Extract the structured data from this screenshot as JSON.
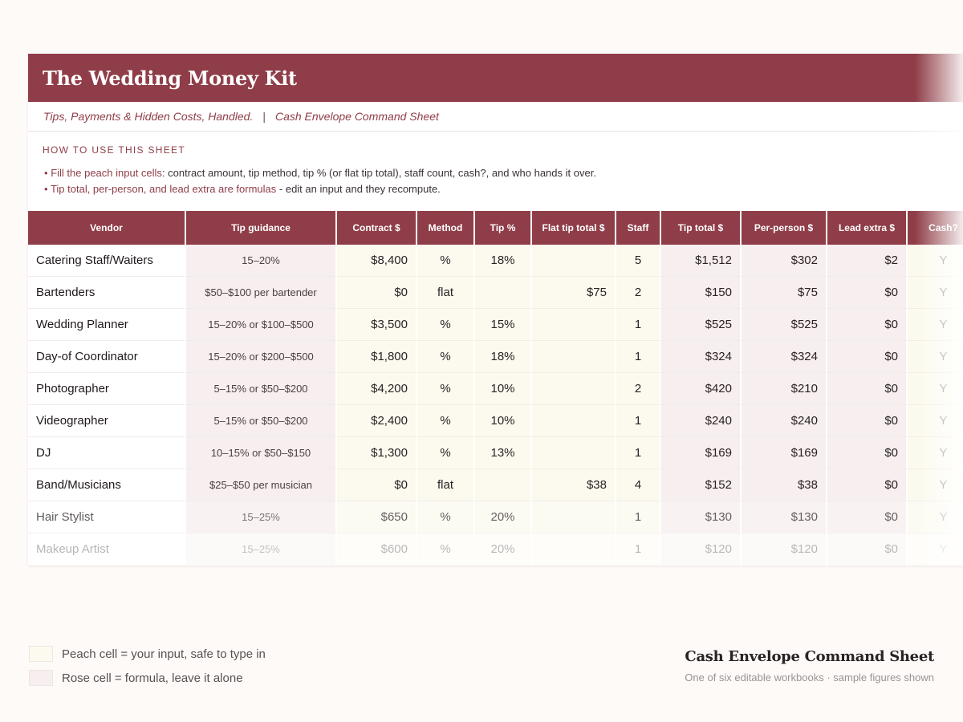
{
  "header": {
    "title": "The Wedding Money Kit",
    "subtitle_left": "Tips, Payments & Hidden Costs, Handled.",
    "separator": "|",
    "subtitle_right": "Cash Envelope Command Sheet"
  },
  "howto": {
    "heading": "HOW TO USE THIS SHEET",
    "items": [
      {
        "bullet": "•",
        "highlight": "Fill the peach input cells",
        "rest": ": contract amount, tip method, tip % (or flat tip total), staff count, cash?, and who hands it over."
      },
      {
        "bullet": "•",
        "highlight": "Tip total, per-person, and lead extra are formulas",
        "rest": " - edit an input and they recompute."
      }
    ]
  },
  "table": {
    "columns": [
      "Vendor",
      "Tip guidance",
      "Contract $",
      "Method",
      "Tip %",
      "Flat tip total $",
      "Staff",
      "Tip total $",
      "Per-person $",
      "Lead extra $",
      "Cash?"
    ],
    "rows": [
      {
        "vendor": "Catering Staff/Waiters",
        "guidance": "15–20%",
        "contract": "$8,400",
        "method": "%",
        "tip_pct": "18%",
        "flat": "",
        "staff": "5",
        "tip_total": "$1,512",
        "per_person": "$302",
        "lead_extra": "$2",
        "cash": "Y"
      },
      {
        "vendor": "Bartenders",
        "guidance": "$50–$100 per bartender",
        "contract": "$0",
        "method": "flat",
        "tip_pct": "",
        "flat": "$75",
        "staff": "2",
        "tip_total": "$150",
        "per_person": "$75",
        "lead_extra": "$0",
        "cash": "Y"
      },
      {
        "vendor": "Wedding Planner",
        "guidance": "15–20% or $100–$500",
        "contract": "$3,500",
        "method": "%",
        "tip_pct": "15%",
        "flat": "",
        "staff": "1",
        "tip_total": "$525",
        "per_person": "$525",
        "lead_extra": "$0",
        "cash": "Y"
      },
      {
        "vendor": "Day-of Coordinator",
        "guidance": "15–20% or $200–$500",
        "contract": "$1,800",
        "method": "%",
        "tip_pct": "18%",
        "flat": "",
        "staff": "1",
        "tip_total": "$324",
        "per_person": "$324",
        "lead_extra": "$0",
        "cash": "Y"
      },
      {
        "vendor": "Photographer",
        "guidance": "5–15% or $50–$200",
        "contract": "$4,200",
        "method": "%",
        "tip_pct": "10%",
        "flat": "",
        "staff": "2",
        "tip_total": "$420",
        "per_person": "$210",
        "lead_extra": "$0",
        "cash": "Y"
      },
      {
        "vendor": "Videographer",
        "guidance": "5–15% or $50–$200",
        "contract": "$2,400",
        "method": "%",
        "tip_pct": "10%",
        "flat": "",
        "staff": "1",
        "tip_total": "$240",
        "per_person": "$240",
        "lead_extra": "$0",
        "cash": "Y"
      },
      {
        "vendor": "DJ",
        "guidance": "10–15% or $50–$150",
        "contract": "$1,300",
        "method": "%",
        "tip_pct": "13%",
        "flat": "",
        "staff": "1",
        "tip_total": "$169",
        "per_person": "$169",
        "lead_extra": "$0",
        "cash": "Y"
      },
      {
        "vendor": "Band/Musicians",
        "guidance": "$25–$50 per musician",
        "contract": "$0",
        "method": "flat",
        "tip_pct": "",
        "flat": "$38",
        "staff": "4",
        "tip_total": "$152",
        "per_person": "$38",
        "lead_extra": "$0",
        "cash": "Y"
      },
      {
        "vendor": "Hair Stylist",
        "guidance": "15–25%",
        "contract": "$650",
        "method": "%",
        "tip_pct": "20%",
        "flat": "",
        "staff": "1",
        "tip_total": "$130",
        "per_person": "$130",
        "lead_extra": "$0",
        "cash": "Y"
      },
      {
        "vendor": "Makeup Artist",
        "guidance": "15–25%",
        "contract": "$600",
        "method": "%",
        "tip_pct": "20%",
        "flat": "",
        "staff": "1",
        "tip_total": "$120",
        "per_person": "$120",
        "lead_extra": "$0",
        "cash": "Y"
      }
    ]
  },
  "legend": {
    "peach_label": "Peach cell = your input, safe to type in",
    "rose_label": "Rose cell = formula, leave it alone"
  },
  "footer": {
    "title": "Cash Envelope Command Sheet",
    "subtitle": "One of six editable workbooks · sample figures shown"
  },
  "colors": {
    "brand": "#8f3d48",
    "peach": "#fcfaee",
    "rose": "#f7eeef"
  }
}
